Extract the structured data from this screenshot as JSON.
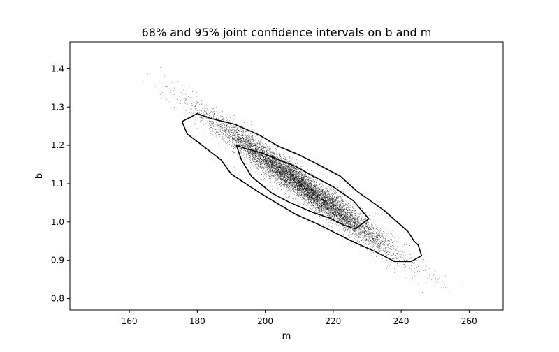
{
  "chart_data": {
    "type": "scatter",
    "title": "68% and 95% joint confidence intervals on b and m",
    "xlabel": "m",
    "ylabel": "b",
    "xlim": [
      142.5,
      270
    ],
    "ylim": [
      0.77,
      1.47
    ],
    "xticks": [
      160,
      180,
      200,
      220,
      240,
      260
    ],
    "yticks": [
      0.8,
      0.9,
      1.0,
      1.1,
      1.2,
      1.3,
      1.4
    ],
    "grid": false,
    "legend": "none",
    "samples": {
      "description_free": true,
      "count": 11000,
      "mean": [
        211.0,
        1.095
      ],
      "std": [
        13.0,
        0.085
      ],
      "correlation": -0.975,
      "marker_color": "#000000",
      "marker_size": 0.6
    },
    "contours": [
      {
        "level": "95%",
        "color": "#000000",
        "points": [
          [
            175.5,
            1.262
          ],
          [
            180,
            1.283
          ],
          [
            184,
            1.27
          ],
          [
            191,
            1.255
          ],
          [
            198,
            1.228
          ],
          [
            204,
            1.197
          ],
          [
            210,
            1.175
          ],
          [
            216,
            1.148
          ],
          [
            222,
            1.12
          ],
          [
            227,
            1.08
          ],
          [
            235,
            1.03
          ],
          [
            242,
            0.975
          ],
          [
            243.8,
            0.95
          ],
          [
            245,
            0.94
          ],
          [
            246,
            0.912
          ],
          [
            243,
            0.897
          ],
          [
            238,
            0.897
          ],
          [
            233,
            0.92
          ],
          [
            225,
            0.952
          ],
          [
            216,
            0.992
          ],
          [
            209,
            1.02
          ],
          [
            204,
            1.046
          ],
          [
            198,
            1.078
          ],
          [
            190,
            1.125
          ],
          [
            187,
            1.162
          ],
          [
            181,
            1.203
          ],
          [
            177,
            1.23
          ],
          [
            175.5,
            1.262
          ]
        ]
      },
      {
        "level": "68%",
        "color": "#000000",
        "points": [
          [
            191.5,
            1.2
          ],
          [
            194,
            1.192
          ],
          [
            199,
            1.18
          ],
          [
            204,
            1.162
          ],
          [
            209,
            1.145
          ],
          [
            214,
            1.12
          ],
          [
            220,
            1.092
          ],
          [
            226,
            1.055
          ],
          [
            230.5,
            1.008
          ],
          [
            226.5,
            0.982
          ],
          [
            223,
            0.992
          ],
          [
            219,
            1.01
          ],
          [
            214,
            1.025
          ],
          [
            207,
            1.052
          ],
          [
            202,
            1.075
          ],
          [
            196,
            1.118
          ],
          [
            193,
            1.162
          ],
          [
            191.5,
            1.2
          ]
        ]
      }
    ]
  }
}
